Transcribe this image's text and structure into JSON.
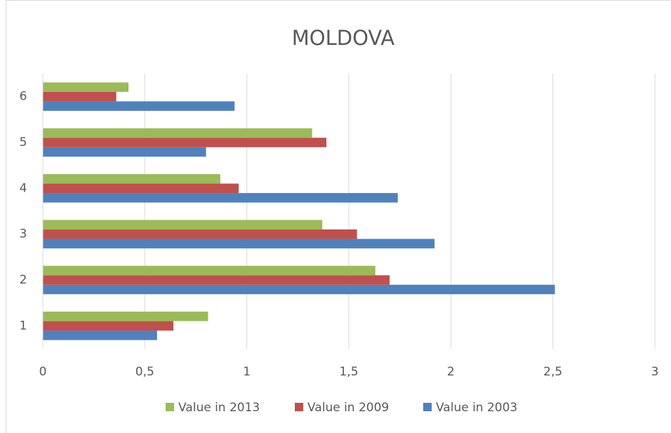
{
  "chart_data": {
    "type": "hbar",
    "title": "MOLDOVA",
    "categories": [
      "1",
      "2",
      "3",
      "4",
      "5",
      "6"
    ],
    "series": [
      {
        "name": "Value in 2003",
        "color": "#4f81bd",
        "values": [
          0.56,
          2.51,
          1.92,
          1.74,
          0.8,
          0.94
        ]
      },
      {
        "name": "Value in 2009",
        "color": "#c0504d",
        "values": [
          0.64,
          1.7,
          1.54,
          0.96,
          1.39,
          0.36
        ]
      },
      {
        "name": "Value in 2013",
        "color": "#9bbb59",
        "values": [
          0.81,
          1.63,
          1.37,
          0.87,
          1.32,
          0.42
        ]
      }
    ],
    "xlim": [
      0,
      3
    ],
    "xticks": [
      0,
      {
        "value": 0.5,
        "label": "0,5"
      },
      1,
      {
        "value": 1.5,
        "label": "1,5"
      },
      2,
      {
        "value": 2.5,
        "label": "2,5"
      },
      3
    ],
    "grid": true,
    "legend": "bottom"
  }
}
